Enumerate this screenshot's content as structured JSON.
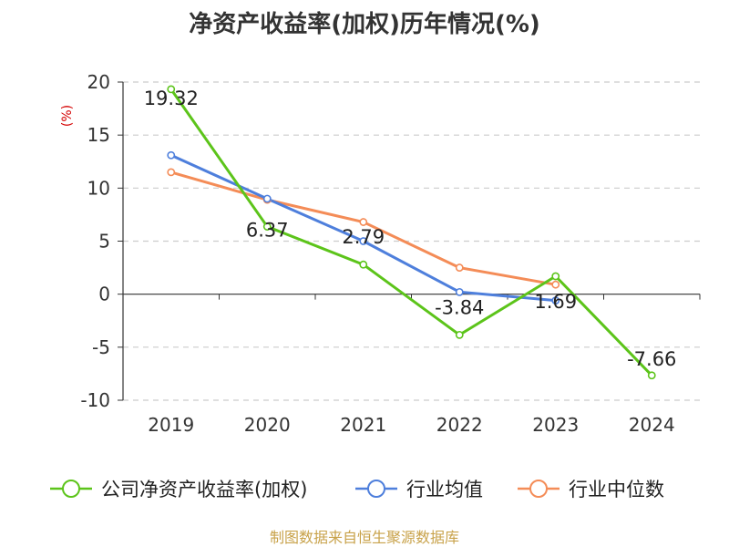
{
  "chart_data": {
    "type": "line",
    "title": "净资产收益率(加权)历年情况(%)",
    "ylabel": "(%)",
    "xlabel": "",
    "categories": [
      "2019",
      "2020",
      "2021",
      "2022",
      "2023",
      "2024"
    ],
    "ylim": [
      -10,
      20
    ],
    "yticks": [
      20,
      15,
      10,
      5,
      0,
      -5,
      -10
    ],
    "grid": true,
    "legend_position": "bottom",
    "series": [
      {
        "name": "公司净资产收益率(加权)",
        "values": [
          19.32,
          6.37,
          2.79,
          -3.84,
          1.69,
          -7.66
        ],
        "color": "#5cc41a",
        "labels": [
          "19.32",
          "6.37",
          "2.79",
          "-3.84",
          "1.69",
          "-7.66"
        ]
      },
      {
        "name": "行业均值",
        "values": [
          13.1,
          9.0,
          5.0,
          0.2,
          -0.6,
          null
        ],
        "color": "#4e7fdc"
      },
      {
        "name": "行业中位数",
        "values": [
          11.5,
          8.9,
          6.8,
          2.5,
          0.9,
          null
        ],
        "color": "#f48c57"
      }
    ]
  },
  "source": "制图数据来自恒生聚源数据库"
}
